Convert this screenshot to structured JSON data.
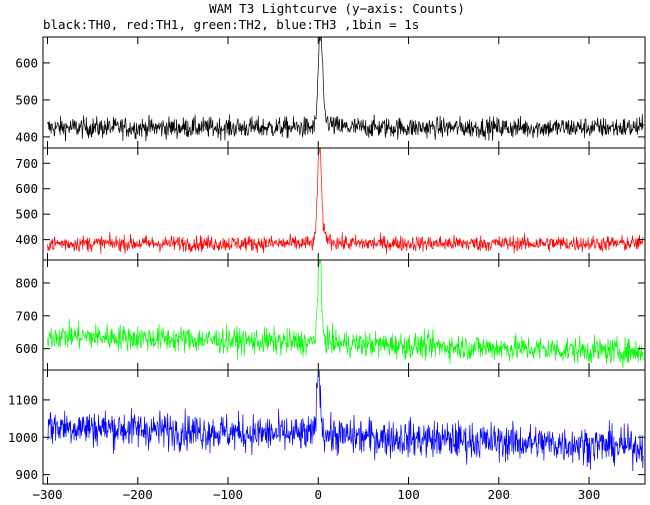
{
  "title": "WAM T3 Lightcurve (y−axis: Counts)",
  "subtitle": "black:TH0, red:TH1, green:TH2, blue:TH3 ,1bin = 1s",
  "chart_data": [
    {
      "type": "line",
      "series": [
        {
          "name": "TH0",
          "color": "#000000",
          "baseline": 425,
          "noise": 20,
          "peak": {
            "x": 2,
            "height": 245,
            "width": 2.2,
            "tail": 6
          }
        }
      ],
      "xlim": [
        -305,
        362
      ],
      "ylim": [
        370,
        670
      ],
      "yticks": [
        400,
        500,
        600
      ],
      "xticks": [],
      "grid": false
    },
    {
      "type": "line",
      "series": [
        {
          "name": "TH1",
          "color": "#ff0000",
          "baseline": 385,
          "noise": 22,
          "peak": {
            "x": 1,
            "height": 365,
            "width": 2.0,
            "tail": 6
          }
        }
      ],
      "xlim": [
        -305,
        362
      ],
      "ylim": [
        320,
        760
      ],
      "yticks": [
        400,
        500,
        600,
        700
      ],
      "xticks": [],
      "grid": false
    },
    {
      "type": "line",
      "series": [
        {
          "name": "TH2",
          "color": "#00ff00",
          "baseline": 640,
          "baseline_end": 590,
          "noise": 28,
          "peak": {
            "x": 1,
            "height": 230,
            "width": 2.0,
            "tail": 5
          }
        }
      ],
      "xlim": [
        -305,
        362
      ],
      "ylim": [
        535,
        870
      ],
      "yticks": [
        600,
        700,
        800
      ],
      "xticks": [],
      "grid": false
    },
    {
      "type": "line",
      "series": [
        {
          "name": "TH3",
          "color": "#0000ff",
          "baseline": 1030,
          "baseline_end": 975,
          "noise": 35,
          "peak": {
            "x": 0,
            "height": 165,
            "width": 2.0,
            "tail": 4
          }
        }
      ],
      "xlim": [
        -305,
        362
      ],
      "ylim": [
        875,
        1180
      ],
      "yticks": [
        900,
        1000,
        1100
      ],
      "xticks": [
        -300,
        -200,
        -100,
        0,
        100,
        200,
        300
      ],
      "grid": false
    }
  ]
}
